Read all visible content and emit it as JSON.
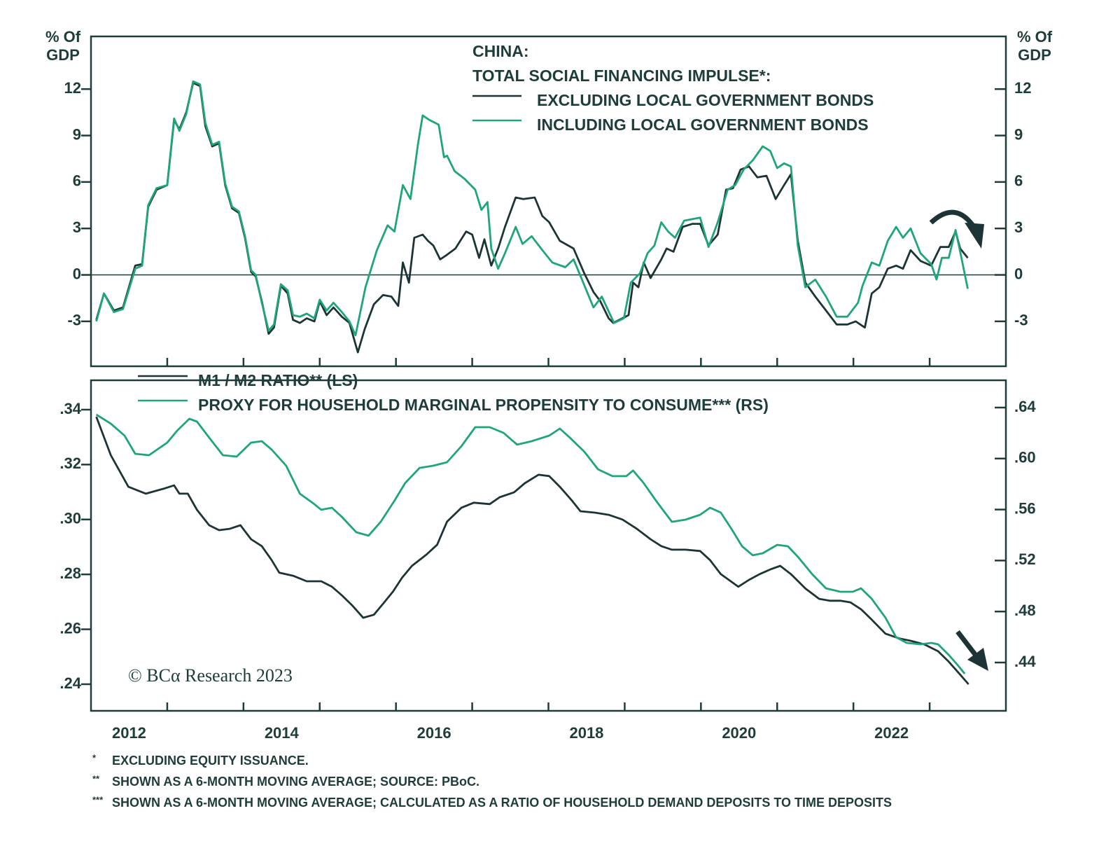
{
  "chart_data": [
    {
      "type": "line",
      "title": "CHINA:",
      "subtitle": "TOTAL SOCIAL FINANCING IMPULSE*:",
      "ylabel": [
        "% Of",
        "GDP"
      ],
      "y2label": [
        "% Of",
        "GDP"
      ],
      "xlim": [
        2012,
        2024
      ],
      "xminorticks": [
        2013,
        2014,
        2015,
        2016,
        2017,
        2018,
        2019,
        2020,
        2021,
        2022,
        2023
      ],
      "ylim": [
        -5.9,
        15.4
      ],
      "yticks": [
        -3,
        0,
        3,
        6,
        9,
        12
      ],
      "y2lim": [
        -5.9,
        15.4
      ],
      "y2ticks": [
        -3,
        0,
        3,
        6,
        9,
        12
      ],
      "hline": 0,
      "series": [
        {
          "name": "EXCLUDING LOCAL GOVERNMENT BONDS",
          "color": "#1d3436",
          "x": [
            2012.07,
            2012.17,
            2012.3,
            2012.42,
            2012.58,
            2012.67,
            2012.75,
            2012.86,
            2013.0,
            2013.09,
            2013.16,
            2013.25,
            2013.34,
            2013.43,
            2013.5,
            2013.59,
            2013.68,
            2013.76,
            2013.85,
            2013.94,
            2014.02,
            2014.1,
            2014.16,
            2014.24,
            2014.33,
            2014.4,
            2014.49,
            2014.58,
            2014.65,
            2014.74,
            2014.83,
            2014.93,
            2015.0,
            2015.09,
            2015.18,
            2015.29,
            2015.39,
            2015.5,
            2015.59,
            2015.71,
            2015.83,
            2015.94,
            2016.03,
            2016.09,
            2016.17,
            2016.24,
            2016.35,
            2016.42,
            2016.49,
            2016.58,
            2016.67,
            2016.78,
            2016.92,
            2017.0,
            2017.09,
            2017.16,
            2017.25,
            2017.34,
            2017.43,
            2017.57,
            2017.67,
            2017.82,
            2017.92,
            2018.01,
            2018.15,
            2018.33,
            2018.47,
            2018.59,
            2018.68,
            2018.79,
            2018.85,
            2018.97,
            2019.05,
            2019.11,
            2019.18,
            2019.25,
            2019.34,
            2019.48,
            2019.55,
            2019.64,
            2019.76,
            2019.89,
            2019.99,
            2020.1,
            2020.22,
            2020.33,
            2020.42,
            2020.52,
            2020.63,
            2020.74,
            2020.86,
            2020.98,
            2021.09,
            2021.18,
            2021.27,
            2021.37,
            2021.5,
            2021.64,
            2021.78,
            2021.92,
            2022.03,
            2022.15,
            2022.24,
            2022.34,
            2022.45,
            2022.56,
            2022.65,
            2022.75,
            2022.88,
            2023.02,
            2023.14,
            2023.25,
            2023.34,
            2023.4,
            2023.5
          ],
          "values": [
            -2.9,
            -1.2,
            -2.3,
            -2.1,
            0.6,
            0.7,
            4.4,
            5.5,
            5.8,
            10.0,
            9.4,
            10.5,
            12.4,
            12.2,
            9.6,
            8.3,
            8.5,
            5.8,
            4.3,
            4.0,
            2.4,
            0.2,
            -0.1,
            -1.7,
            -3.8,
            -3.4,
            -0.7,
            -1.2,
            -2.9,
            -3.1,
            -2.8,
            -3.0,
            -1.7,
            -2.6,
            -2.1,
            -2.7,
            -3.1,
            -5.0,
            -3.5,
            -1.9,
            -1.3,
            -1.4,
            -2.0,
            0.8,
            -0.5,
            2.4,
            2.6,
            2.2,
            1.9,
            1.0,
            1.3,
            1.7,
            2.8,
            2.6,
            1.1,
            2.3,
            0.6,
            1.7,
            3.1,
            5.0,
            4.9,
            5.0,
            3.8,
            3.4,
            2.2,
            1.7,
            0.1,
            -1.1,
            -1.7,
            -2.8,
            -3.1,
            -2.8,
            -2.6,
            -0.5,
            -0.8,
            0.8,
            -0.2,
            1.0,
            1.7,
            1.5,
            3.1,
            3.3,
            3.3,
            1.9,
            2.6,
            5.5,
            5.6,
            6.8,
            7.0,
            6.3,
            6.4,
            4.9,
            5.8,
            6.5,
            2.2,
            -0.5,
            -1.4,
            -2.3,
            -3.2,
            -3.2,
            -3.0,
            -3.4,
            -1.2,
            -0.8,
            0.4,
            0.6,
            0.4,
            1.6,
            0.9,
            0.6,
            1.8,
            1.8,
            2.8,
            1.7,
            1.1
          ]
        },
        {
          "name": "INCLUDING LOCAL GOVERNMENT BONDS",
          "color": "#1fa57c",
          "x": [
            2012.07,
            2012.17,
            2012.3,
            2012.42,
            2012.58,
            2012.67,
            2012.75,
            2012.86,
            2013.0,
            2013.09,
            2013.16,
            2013.25,
            2013.34,
            2013.43,
            2013.5,
            2013.59,
            2013.68,
            2013.76,
            2013.85,
            2013.94,
            2014.02,
            2014.1,
            2014.16,
            2014.24,
            2014.33,
            2014.4,
            2014.49,
            2014.58,
            2014.65,
            2014.74,
            2014.83,
            2014.93,
            2015.0,
            2015.09,
            2015.18,
            2015.29,
            2015.39,
            2015.47,
            2015.6,
            2015.75,
            2015.89,
            2015.98,
            2016.09,
            2016.19,
            2016.29,
            2016.35,
            2016.44,
            2016.56,
            2016.63,
            2016.67,
            2016.77,
            2016.9,
            2017.04,
            2017.12,
            2017.2,
            2017.25,
            2017.34,
            2017.43,
            2017.57,
            2017.66,
            2017.78,
            2017.92,
            2018.05,
            2018.22,
            2018.33,
            2018.44,
            2018.59,
            2018.7,
            2018.86,
            2018.99,
            2019.08,
            2019.2,
            2019.3,
            2019.39,
            2019.48,
            2019.57,
            2019.66,
            2019.78,
            2019.99,
            2020.1,
            2020.22,
            2020.35,
            2020.45,
            2020.56,
            2020.68,
            2020.81,
            2020.91,
            2021.0,
            2021.09,
            2021.18,
            2021.27,
            2021.37,
            2021.5,
            2021.64,
            2021.78,
            2021.92,
            2022.06,
            2022.12,
            2022.24,
            2022.34,
            2022.45,
            2022.56,
            2022.65,
            2022.75,
            2022.88,
            2023.02,
            2023.09,
            2023.16,
            2023.25,
            2023.34,
            2023.4,
            2023.5
          ],
          "values": [
            -3.0,
            -1.2,
            -2.4,
            -2.2,
            0.4,
            0.6,
            4.5,
            5.6,
            5.8,
            10.1,
            9.3,
            10.4,
            12.5,
            12.3,
            9.8,
            8.4,
            8.6,
            5.9,
            4.4,
            4.1,
            2.5,
            0.3,
            0,
            -1.8,
            -3.6,
            -3.2,
            -0.6,
            -1.0,
            -2.6,
            -2.7,
            -2.5,
            -2.8,
            -1.6,
            -2.3,
            -1.8,
            -2.4,
            -3.0,
            -3.9,
            -0.8,
            1.6,
            3.2,
            2.8,
            5.8,
            4.9,
            8.5,
            10.3,
            10.0,
            9.7,
            7.6,
            7.7,
            6.7,
            6.2,
            5.5,
            4.2,
            4.7,
            1.7,
            0.4,
            1.4,
            3.1,
            2.0,
            2.5,
            1.6,
            0.8,
            0.5,
            1.0,
            -0.3,
            -2.1,
            -1.4,
            -3.1,
            -2.8,
            -0.5,
            0.1,
            1.4,
            1.9,
            3.4,
            2.8,
            2.4,
            3.5,
            3.7,
            1.8,
            3.4,
            5.5,
            5.8,
            6.8,
            7.4,
            8.3,
            8.0,
            6.9,
            7.2,
            7.0,
            1.9,
            -0.8,
            -0.3,
            -1.4,
            -2.7,
            -2.7,
            -1.8,
            -0.7,
            0.8,
            0.6,
            2.2,
            3.1,
            2.4,
            3.0,
            1.4,
            0.7,
            -0.3,
            1.1,
            1.1,
            2.9,
            1.5,
            -0.9
          ]
        }
      ]
    },
    {
      "type": "line",
      "xlim": [
        2012,
        2024
      ],
      "xminorticks": [
        2013,
        2014,
        2015,
        2016,
        2017,
        2018,
        2019,
        2020,
        2021,
        2022,
        2023
      ],
      "xticks": [
        {
          "value": 2012.5,
          "label": "2012"
        },
        {
          "value": 2014.5,
          "label": "2014"
        },
        {
          "value": 2016.5,
          "label": "2016"
        },
        {
          "value": 2018.5,
          "label": "2018"
        },
        {
          "value": 2020.5,
          "label": "2020"
        },
        {
          "value": 2022.5,
          "label": "2022"
        }
      ],
      "ylim": [
        0.2303,
        0.3507
      ],
      "yticks": [
        {
          "value": 0.24,
          "label": ".24"
        },
        {
          "value": 0.26,
          "label": ".26"
        },
        {
          "value": 0.28,
          "label": ".28"
        },
        {
          "value": 0.3,
          "label": ".30"
        },
        {
          "value": 0.32,
          "label": ".32"
        },
        {
          "value": 0.34,
          "label": ".34"
        }
      ],
      "y2lim": [
        0.4021,
        0.6614
      ],
      "y2ticks": [
        {
          "value": 0.44,
          "label": ".44"
        },
        {
          "value": 0.48,
          "label": ".48"
        },
        {
          "value": 0.52,
          "label": ".52"
        },
        {
          "value": 0.56,
          "label": ".56"
        },
        {
          "value": 0.6,
          "label": ".60"
        },
        {
          "value": 0.64,
          "label": ".64"
        }
      ],
      "annotation": "© BCα Research 2023",
      "series": [
        {
          "name": "M1 / M2 RATIO** (LS)",
          "color": "#1d3436",
          "x": [
            2012.07,
            2012.26,
            2012.49,
            2012.72,
            2012.95,
            2013.09,
            2013.16,
            2013.27,
            2013.39,
            2013.55,
            2013.68,
            2013.82,
            2013.96,
            2014.1,
            2014.24,
            2014.37,
            2014.47,
            2014.65,
            2014.83,
            2015.02,
            2015.16,
            2015.29,
            2015.43,
            2015.57,
            2015.71,
            2015.83,
            2015.96,
            2016.08,
            2016.21,
            2016.4,
            2016.54,
            2016.67,
            2016.86,
            2017.02,
            2017.23,
            2017.36,
            2017.55,
            2017.69,
            2017.87,
            2018.01,
            2018.15,
            2018.31,
            2018.42,
            2018.61,
            2018.79,
            2018.97,
            2019.16,
            2019.34,
            2019.48,
            2019.62,
            2019.8,
            2019.99,
            2020.12,
            2020.26,
            2020.49,
            2020.63,
            2020.77,
            2020.91,
            2021.04,
            2021.18,
            2021.37,
            2021.55,
            2021.69,
            2021.83,
            2021.96,
            2022.1,
            2022.24,
            2022.42,
            2022.61,
            2022.75,
            2022.93,
            2023.11,
            2023.25,
            2023.39,
            2023.51
          ],
          "values": [
            0.3374,
            0.3234,
            0.3119,
            0.3094,
            0.3112,
            0.3124,
            0.3094,
            0.3094,
            0.3035,
            0.2979,
            0.2961,
            0.2966,
            0.2979,
            0.2928,
            0.2903,
            0.2852,
            0.2806,
            0.2795,
            0.2775,
            0.2775,
            0.2755,
            0.2724,
            0.2686,
            0.2642,
            0.2653,
            0.2693,
            0.2737,
            0.2788,
            0.2831,
            0.2872,
            0.2908,
            0.2992,
            0.3043,
            0.3061,
            0.3056,
            0.3081,
            0.3099,
            0.3132,
            0.3163,
            0.3158,
            0.3119,
            0.3068,
            0.303,
            0.3025,
            0.3017,
            0.3,
            0.2966,
            0.2928,
            0.2903,
            0.289,
            0.289,
            0.2885,
            0.2852,
            0.2801,
            0.2755,
            0.278,
            0.2801,
            0.2818,
            0.2831,
            0.2801,
            0.2749,
            0.2711,
            0.2704,
            0.2704,
            0.2698,
            0.2673,
            0.2635,
            0.2584,
            0.2566,
            0.2558,
            0.2545,
            0.252,
            0.2482,
            0.2438,
            0.24
          ]
        },
        {
          "name": "PROXY FOR HOUSEHOLD MARGINAL PROPENSITY TO CONSUME*** (RS)",
          "color": "#1fa57c",
          "axis": "y2",
          "x": [
            2012.07,
            2012.26,
            2012.44,
            2012.58,
            2012.76,
            2013.0,
            2013.13,
            2013.29,
            2013.39,
            2013.53,
            2013.73,
            2013.91,
            2014.1,
            2014.24,
            2014.37,
            2014.56,
            2014.74,
            2014.93,
            2015.02,
            2015.16,
            2015.29,
            2015.48,
            2015.64,
            2015.8,
            2015.98,
            2016.12,
            2016.31,
            2016.49,
            2016.67,
            2016.86,
            2017.04,
            2017.23,
            2017.41,
            2017.59,
            2017.78,
            2018.01,
            2018.15,
            2018.28,
            2018.47,
            2018.65,
            2018.84,
            2019.02,
            2019.11,
            2019.25,
            2019.43,
            2019.62,
            2019.8,
            2019.99,
            2020.12,
            2020.26,
            2020.4,
            2020.54,
            2020.68,
            2020.81,
            2021.0,
            2021.14,
            2021.27,
            2021.46,
            2021.64,
            2021.83,
            2021.99,
            2022.1,
            2022.24,
            2022.42,
            2022.56,
            2022.7,
            2022.88,
            2023.02,
            2023.11,
            2023.25,
            2023.37,
            2023.46
          ],
          "values": [
            0.6345,
            0.6274,
            0.618,
            0.6037,
            0.6026,
            0.6125,
            0.6219,
            0.6312,
            0.629,
            0.618,
            0.6026,
            0.6015,
            0.6125,
            0.6136,
            0.607,
            0.5944,
            0.5724,
            0.5642,
            0.5598,
            0.5614,
            0.5543,
            0.5422,
            0.5395,
            0.5504,
            0.5669,
            0.5807,
            0.5927,
            0.5944,
            0.5971,
            0.6098,
            0.6246,
            0.6246,
            0.6202,
            0.6109,
            0.6136,
            0.618,
            0.6235,
            0.6164,
            0.6054,
            0.5916,
            0.5862,
            0.5862,
            0.5906,
            0.5807,
            0.5653,
            0.5504,
            0.5521,
            0.5559,
            0.5614,
            0.5576,
            0.5449,
            0.5312,
            0.5241,
            0.5257,
            0.5323,
            0.5312,
            0.523,
            0.5092,
            0.4982,
            0.4955,
            0.4955,
            0.4982,
            0.49,
            0.4752,
            0.4598,
            0.4554,
            0.4543,
            0.4554,
            0.4543,
            0.446,
            0.4378,
            0.4312
          ]
        }
      ]
    }
  ],
  "footnotes": [
    "EXCLUDING EQUITY ISSUANCE.",
    "SHOWN AS A 6-MONTH MOVING AVERAGE; SOURCE: PBoC.",
    "SHOWN AS A 6-MONTH MOVING AVERAGE; CALCULATED AS A RATIO OF HOUSEHOLD DEMAND DEPOSITS TO TIME DEPOSITS"
  ],
  "footnote_marks": [
    "*",
    "**",
    "***"
  ]
}
